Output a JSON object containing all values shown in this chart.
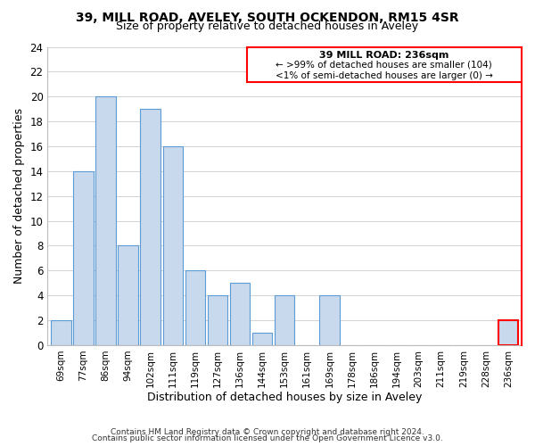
{
  "title": "39, MILL ROAD, AVELEY, SOUTH OCKENDON, RM15 4SR",
  "subtitle": "Size of property relative to detached houses in Aveley",
  "xlabel": "Distribution of detached houses by size in Aveley",
  "ylabel": "Number of detached properties",
  "bin_labels": [
    "69sqm",
    "77sqm",
    "86sqm",
    "94sqm",
    "102sqm",
    "111sqm",
    "119sqm",
    "127sqm",
    "136sqm",
    "144sqm",
    "153sqm",
    "161sqm",
    "169sqm",
    "178sqm",
    "186sqm",
    "194sqm",
    "203sqm",
    "211sqm",
    "219sqm",
    "228sqm",
    "236sqm"
  ],
  "bar_heights": [
    2,
    14,
    20,
    8,
    19,
    16,
    6,
    4,
    5,
    1,
    4,
    0,
    4,
    0,
    0,
    0,
    0,
    0,
    0,
    0,
    2
  ],
  "bar_color": "#c8d9ed",
  "bar_edge_color": "#5b9bd5",
  "highlight_bar_index": 20,
  "highlight_bar_edge_color": "#ff0000",
  "annotation_box_edge_color": "#ff0000",
  "annotation_title": "39 MILL ROAD: 236sqm",
  "annotation_line1": "← >99% of detached houses are smaller (104)",
  "annotation_line2": "<1% of semi-detached houses are larger (0) →",
  "yticks": [
    0,
    2,
    4,
    6,
    8,
    10,
    12,
    14,
    16,
    18,
    20,
    22,
    24
  ],
  "ylim": [
    0,
    24
  ],
  "footer1": "Contains HM Land Registry data © Crown copyright and database right 2024.",
  "footer2": "Contains public sector information licensed under the Open Government Licence v3.0.",
  "background_color": "#ffffff",
  "grid_color": "#cccccc",
  "title_fontsize": 10,
  "subtitle_fontsize": 9,
  "ylabel_fontsize": 9,
  "xlabel_fontsize": 9,
  "ytick_fontsize": 8.5,
  "xtick_fontsize": 7.5,
  "footer_fontsize": 6.5,
  "annot_title_fontsize": 8,
  "annot_text_fontsize": 7.5
}
